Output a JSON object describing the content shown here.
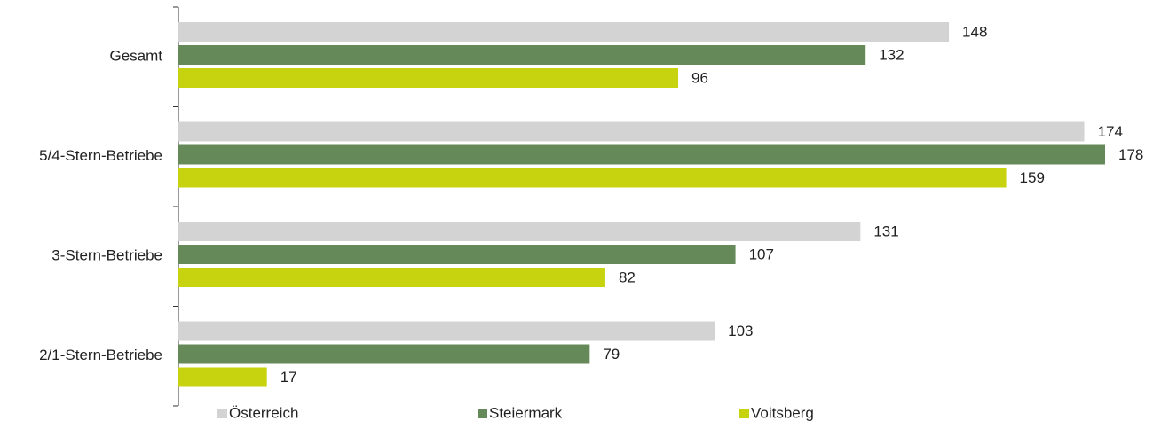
{
  "chart_data": {
    "type": "bar",
    "orientation": "horizontal",
    "categories": [
      "Gesamt",
      "5/4-Stern-Betriebe",
      "3-Stern-Betriebe",
      "2/1-Stern-Betriebe"
    ],
    "series": [
      {
        "name": "Österreich",
        "color": "#d3d3d3",
        "values": [
          148,
          174,
          131,
          103
        ]
      },
      {
        "name": "Steiermark",
        "color": "#66895a",
        "values": [
          132,
          178,
          107,
          79
        ]
      },
      {
        "name": "Voitsberg",
        "color": "#c8d30f",
        "values": [
          96,
          159,
          82,
          17
        ]
      }
    ],
    "legend": "bottom"
  }
}
